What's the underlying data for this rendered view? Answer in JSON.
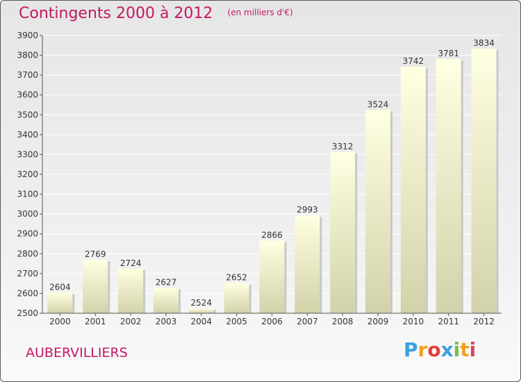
{
  "chart_data": {
    "type": "bar",
    "title": "Contingents 2000 à 2012",
    "subtitle": "(en milliers d'€)",
    "categories": [
      "2000",
      "2001",
      "2002",
      "2003",
      "2004",
      "2005",
      "2006",
      "2007",
      "2008",
      "2009",
      "2010",
      "2011",
      "2012"
    ],
    "values": [
      2604,
      2769,
      2724,
      2627,
      2524,
      2652,
      2866,
      2993,
      3312,
      3524,
      3742,
      3781,
      3834
    ],
    "ylim": [
      2500,
      3900
    ],
    "yticks": [
      2500,
      2600,
      2700,
      2800,
      2900,
      3000,
      3100,
      3200,
      3300,
      3400,
      3500,
      3600,
      3700,
      3800,
      3900
    ],
    "grid": true,
    "xlabel": "",
    "ylabel": ""
  },
  "footer": {
    "city": "AUBERVILLIERS",
    "logo_letters": [
      "P",
      "r",
      "o",
      "x",
      "i",
      "t",
      "i"
    ]
  },
  "colors": {
    "title": "#c21863",
    "bar_top": "#ffffe0",
    "bar_bottom": "#d0d0a8",
    "logo": [
      "#3aa0e0",
      "#f0a020",
      "#e04040",
      "#3aa0e0",
      "#70c040",
      "#f0a020",
      "#e04060"
    ]
  }
}
